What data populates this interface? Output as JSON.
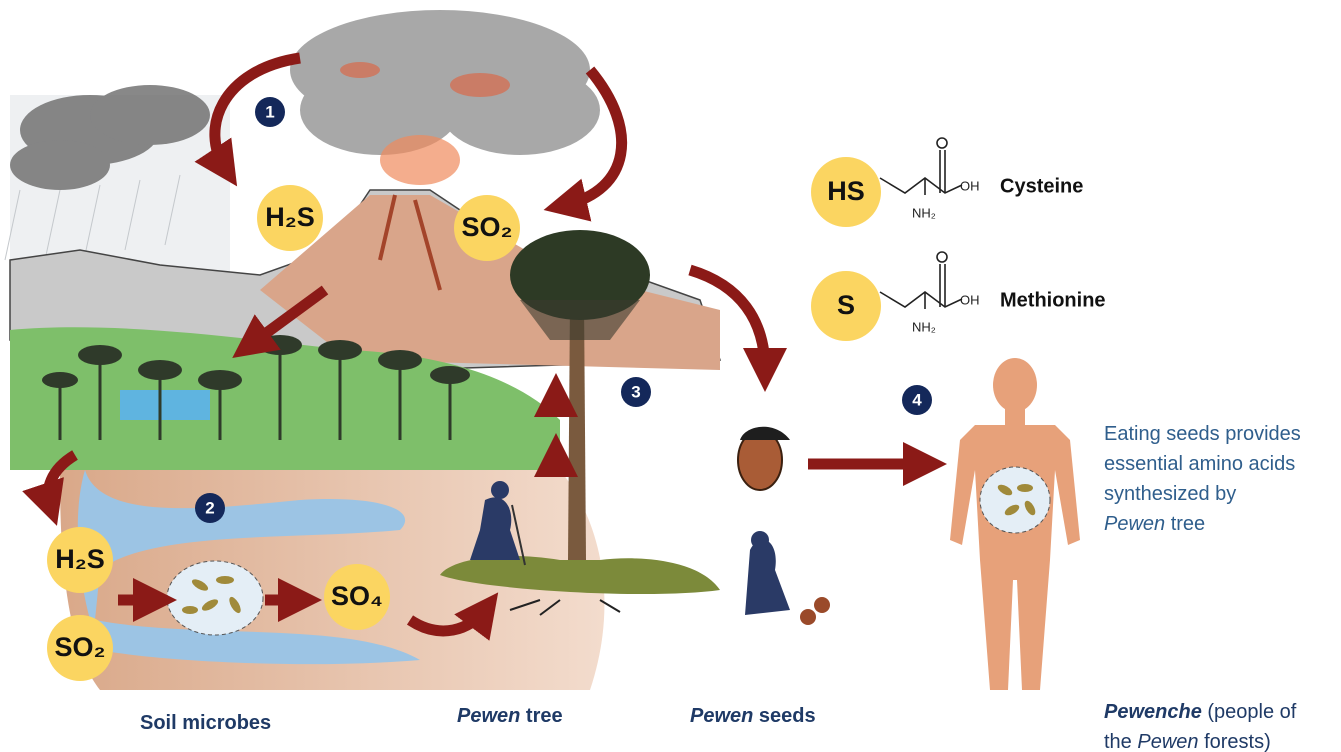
{
  "steps": [
    "1",
    "2",
    "3",
    "4"
  ],
  "compounds": {
    "h2s_air": "H₂S",
    "so2_air": "SO₂",
    "h2s_soil": "H₂S",
    "so2_soil": "SO₂",
    "so4_soil": "SO₄"
  },
  "amino_acids": [
    {
      "group": "HS",
      "oh": "OH",
      "nh2": "NH₂",
      "name": "Cysteine"
    },
    {
      "group": "S",
      "oh": "OH",
      "nh2": "NH₂",
      "name": "Methionine"
    }
  ],
  "labels": {
    "soil_microbes": [
      {
        "text": "Soil microbes"
      }
    ],
    "pewen_tree": [
      {
        "text": "Pewen",
        "italic": true
      },
      {
        "text": " tree"
      }
    ],
    "pewen_seeds": [
      {
        "text": "Pewen",
        "italic": true
      },
      {
        "text": " seeds"
      }
    ],
    "pewenche": [
      [
        {
          "text": "Pewenche",
          "italic": true,
          "bold": true
        },
        {
          "text": " (people of"
        }
      ],
      [
        {
          "text": "the "
        },
        {
          "text": "Pewen",
          "italic": true
        },
        {
          "text": " forests)"
        }
      ]
    ]
  },
  "caption": [
    [
      {
        "text": "Eating seeds provides"
      }
    ],
    [
      {
        "text": "essential amino acids"
      }
    ],
    [
      {
        "text": "synthesized by"
      }
    ],
    [
      {
        "text": "Pewen",
        "italic": true
      },
      {
        "text": " tree"
      }
    ]
  ]
}
